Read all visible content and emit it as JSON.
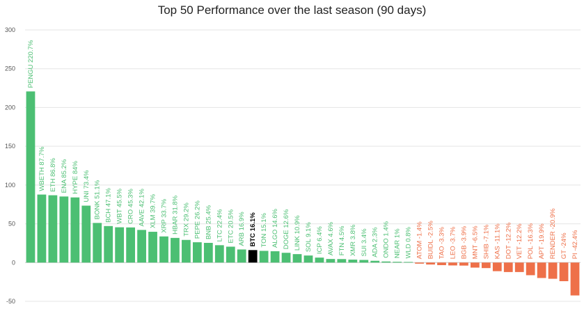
{
  "chart_data": {
    "type": "bar",
    "title": "Top 50 Performance over the last season (90 days)",
    "xlabel": "",
    "ylabel": "",
    "ylim": [
      -50,
      300
    ],
    "yticks": [
      -50,
      0,
      50,
      100,
      150,
      200,
      250,
      300
    ],
    "grid": true,
    "legend": "none",
    "colors": {
      "positive": "#4cbf73",
      "negative": "#ee7049",
      "highlight": "#000000",
      "grid": "#e5e5e5"
    },
    "highlight": "BTC",
    "categories": [
      "PENGU",
      "WBETH",
      "ETH",
      "ENA",
      "HYPE",
      "UNI",
      "BONK",
      "BCH",
      "WBT",
      "CRO",
      "AAVE",
      "XLM",
      "XRP",
      "HBAR",
      "TRX",
      "PEPE",
      "BNB",
      "LTC",
      "ETC",
      "ARB",
      "BTC",
      "TON",
      "ALGO",
      "DOGE",
      "LINK",
      "SOL",
      "ICP",
      "AVAX",
      "FTN",
      "XMR",
      "SUI",
      "ADA",
      "ONDO",
      "NEAR",
      "WLD",
      "ATOM",
      "BUIDL",
      "TAO",
      "LEO",
      "BGB",
      "MNT",
      "SHIB",
      "KAS",
      "DOT",
      "VET",
      "POL",
      "APT",
      "RENDER",
      "GT",
      "PI"
    ],
    "values": [
      220.7,
      87.7,
      86.8,
      85.2,
      84,
      73.4,
      51.1,
      47.1,
      45.5,
      45.3,
      42.1,
      39.7,
      33.7,
      31.8,
      29.2,
      26.2,
      25.4,
      22.4,
      20.5,
      16.9,
      16.1,
      15.1,
      14.6,
      12.6,
      10.9,
      9.1,
      6.4,
      4.6,
      4.5,
      3.8,
      3.4,
      2.3,
      1.4,
      1,
      0.8,
      -1.4,
      -2.5,
      -3.3,
      -3.7,
      -3.9,
      -6.5,
      -7.1,
      -11.1,
      -12.2,
      -12.2,
      -16.3,
      -19.9,
      -20.9,
      -24,
      -42.4
    ],
    "labels": [
      "PENGU 220.7%",
      "WBETH 87.7%",
      "ETH 86.8%",
      "ENA 85.2%",
      "HYPE 84%",
      "UNI 73.4%",
      "BONK 51.1%",
      "BCH 47.1%",
      "WBT 45.5%",
      "CRO 45.3%",
      "AAVE 42.1%",
      "XLM 39.7%",
      "XRP 33.7%",
      "HBAR 31.8%",
      "TRX 29.2%",
      "PEPE 26.2%",
      "BNB 25.4%",
      "LTC 22.4%",
      "ETC 20.5%",
      "ARB 16.9%",
      "BTC 16.1%",
      "TON 15.1%",
      "ALGO 14.6%",
      "DOGE 12.6%",
      "LINK 10.9%",
      "SOL 9.1%",
      "ICP 6.4%",
      "AVAX 4.6%",
      "FTN 4.5%",
      "XMR 3.8%",
      "SUI 3.4%",
      "ADA 2.3%",
      "ONDO 1.4%",
      "NEAR 1%",
      "WLD 0.8%",
      "ATOM -1.4%",
      "BUIDL -2.5%",
      "TAO -3.3%",
      "LEO -3.7%",
      "BGB -3.9%",
      "MNT -6.5%",
      "SHIB -7.1%",
      "KAS -11.1%",
      "DOT -12.2%",
      "VET -12.2%",
      "POL -16.3%",
      "APT -19.9%",
      "RENDER -20.9%",
      "GT -24%",
      "PI -42.4%"
    ]
  }
}
